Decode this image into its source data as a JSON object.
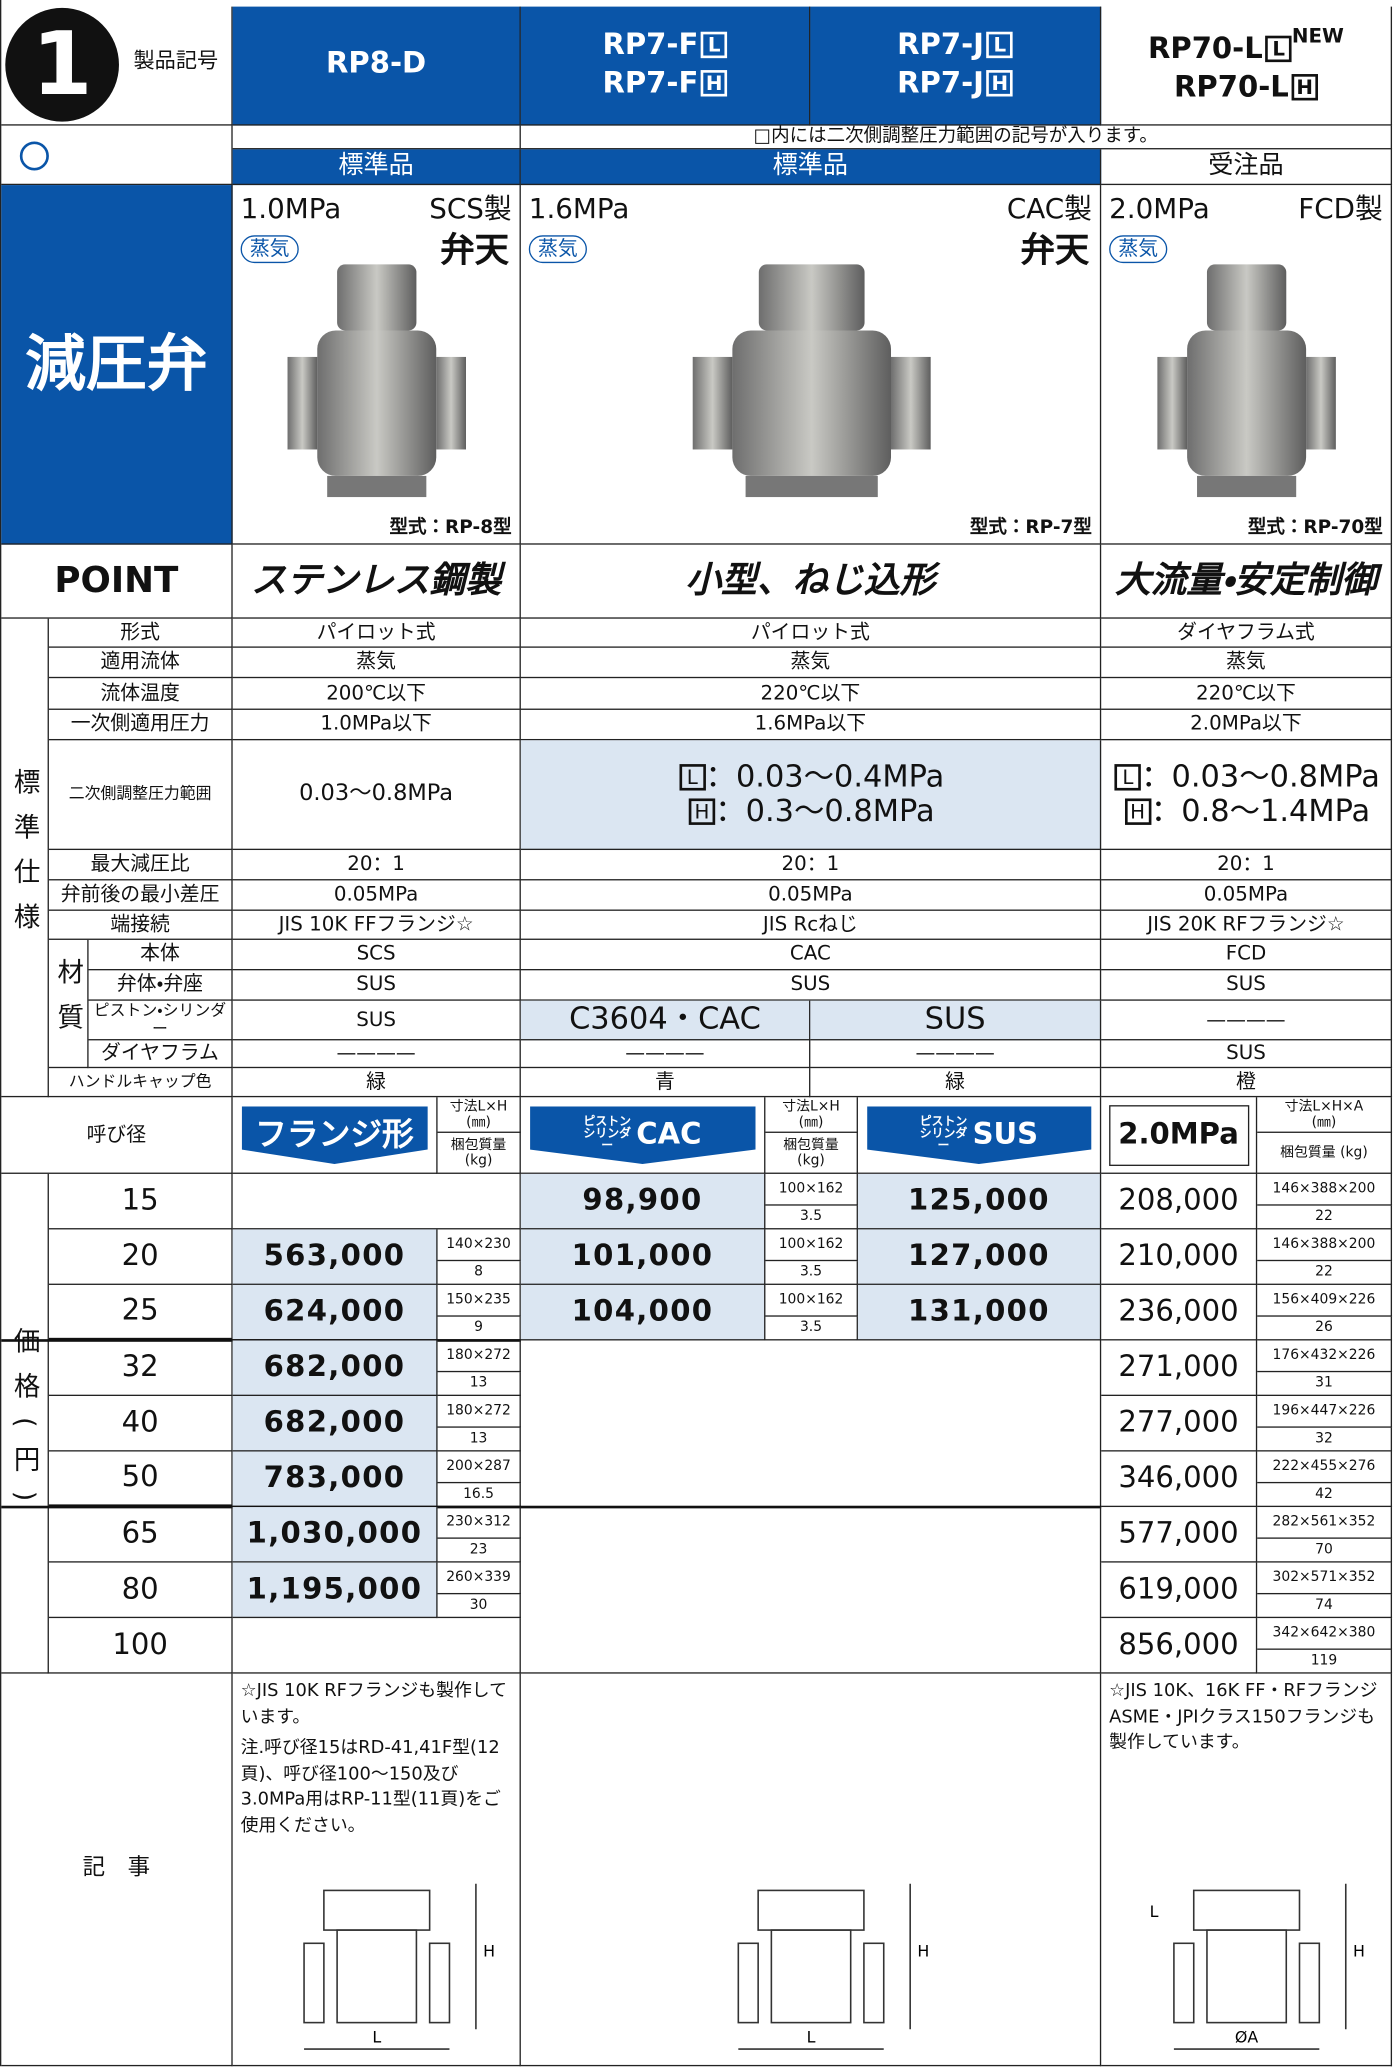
{
  "header": {
    "badge": "1",
    "label": "製品記号",
    "models": [
      {
        "lines": [
          {
            "text": "RP8-D"
          }
        ]
      },
      {
        "lines": [
          {
            "text": "RP7-F",
            "box": "L"
          },
          {
            "text": "RP7-F",
            "box": "H"
          }
        ]
      },
      {
        "lines": [
          {
            "text": "RP7-J",
            "box": "L"
          },
          {
            "text": "RP7-J",
            "box": "H"
          }
        ]
      },
      {
        "lines": [
          {
            "text": "RP70-L",
            "box": "L",
            "sup": "NEW"
          },
          {
            "text": "RP70-L",
            "box": "H"
          }
        ]
      }
    ]
  },
  "note_top": "□内には二次側調整圧力範囲の記号が入ります。",
  "grades": [
    "標準品",
    "標準品",
    "受注品"
  ],
  "category": "減圧弁",
  "products": [
    {
      "pressure": "1.0MPa",
      "material": "SCS製",
      "media": "蒸気",
      "brand": "弁天",
      "model_type": "型式：RP-8型"
    },
    {
      "pressure": "1.6MPa",
      "material": "CAC製",
      "media": "蒸気",
      "brand": "弁天",
      "model_type": "型式：RP-7型"
    },
    {
      "pressure": "2.0MPa",
      "material": "FCD製",
      "media": "蒸気",
      "model_type": "型式：RP-70型"
    }
  ],
  "point": {
    "label": "POINT",
    "items": [
      "ステンレス鋼製",
      "小型、ねじ込形",
      "大流量・安定制御"
    ]
  },
  "specs": {
    "group_label": "標準仕様",
    "material_label": "材質",
    "rows": [
      {
        "label": "形式",
        "cells": [
          "パイロット式",
          "パイロット式",
          "ダイヤフラム式"
        ]
      },
      {
        "label": "適用流体",
        "cells": [
          "蒸気",
          "蒸気",
          "蒸気"
        ]
      },
      {
        "label": "流体温度",
        "cells": [
          "200℃以下",
          "220℃以下",
          "220℃以下"
        ]
      },
      {
        "label": "一次側適用圧力",
        "cells": [
          "1.0MPa以下",
          "1.6MPa以下",
          "2.0MPa以下"
        ]
      },
      {
        "label": "二次側調整圧力範囲",
        "cells": [
          "0.03〜0.8MPa",
          [
            {
              "box": "L",
              "text": "：0.03〜0.4MPa"
            },
            {
              "box": "H",
              "text": "：0.3〜0.8MPa"
            }
          ],
          [
            {
              "box": "L",
              "text": "：0.03〜0.8MPa"
            },
            {
              "box": "H",
              "text": "：0.8〜1.4MPa"
            }
          ]
        ]
      },
      {
        "label": "最大減圧比",
        "cells": [
          "20：1",
          "20：1",
          "20：1"
        ]
      },
      {
        "label": "弁前後の最小差圧",
        "cells": [
          "0.05MPa",
          "0.05MPa",
          "0.05MPa"
        ]
      },
      {
        "label": "端接続",
        "cells": [
          "JIS 10K FFフランジ☆",
          "JIS Rcねじ",
          "JIS 20K RFフランジ☆"
        ]
      },
      {
        "label": "本体",
        "cells": [
          "SCS",
          "CAC",
          "FCD"
        ]
      },
      {
        "label": "弁体・弁座",
        "cells": [
          "SUS",
          "SUS",
          "SUS"
        ]
      },
      {
        "label": "ピストン・シリンダー",
        "cells": [
          "SUS",
          "C3604・CAC",
          "SUS",
          "————"
        ]
      },
      {
        "label": "ダイヤフラム",
        "cells": [
          "————",
          "————",
          "————",
          "SUS"
        ]
      },
      {
        "label": "ハンドルキャップ色",
        "cells": [
          "緑",
          "青",
          "緑",
          "橙"
        ]
      }
    ]
  },
  "price": {
    "group_label": "価格(円)",
    "size_label": "呼び径",
    "headers": [
      {
        "badge": "フランジ形",
        "dim": "寸法L×H",
        "dim_unit": "(㎜)",
        "weight": "梱包質量",
        "weight_unit": "(kg)"
      },
      {
        "badge_small": "ピストン シリンダー",
        "badge": "CAC",
        "dim": "寸法L×H",
        "dim_unit": "(㎜)",
        "weight": "梱包質量",
        "weight_unit": "(kg)"
      },
      {
        "badge_small": "ピストン シリンダー",
        "badge": "SUS"
      },
      {
        "badge": "2.0MPa",
        "dim": "寸法L×H×A",
        "dim_unit": "(㎜)",
        "weight": "梱包質量 (kg)"
      }
    ],
    "rows": [
      {
        "size": "15",
        "rp8": null,
        "rp7": {
          "cac": "98,900",
          "dim": "100×162",
          "kg": "3.5",
          "sus": "125,000"
        },
        "rp70": {
          "price": "208,000",
          "dim": "146×388×200",
          "kg": "22"
        }
      },
      {
        "size": "20",
        "rp8": {
          "price": "563,000",
          "dim": "140×230",
          "kg": "8"
        },
        "rp7": {
          "cac": "101,000",
          "dim": "100×162",
          "kg": "3.5",
          "sus": "127,000"
        },
        "rp70": {
          "price": "210,000",
          "dim": "146×388×200",
          "kg": "22"
        }
      },
      {
        "size": "25",
        "rp8": {
          "price": "624,000",
          "dim": "150×235",
          "kg": "9"
        },
        "rp7": {
          "cac": "104,000",
          "dim": "100×162",
          "kg": "3.5",
          "sus": "131,000"
        },
        "rp70": {
          "price": "236,000",
          "dim": "156×409×226",
          "kg": "26"
        }
      },
      {
        "size": "32",
        "rp8": {
          "price": "682,000",
          "dim": "180×272",
          "kg": "13"
        },
        "rp7": null,
        "rp70": {
          "price": "271,000",
          "dim": "176×432×226",
          "kg": "31"
        }
      },
      {
        "size": "40",
        "rp8": {
          "price": "682,000",
          "dim": "180×272",
          "kg": "13"
        },
        "rp7": null,
        "rp70": {
          "price": "277,000",
          "dim": "196×447×226",
          "kg": "32"
        }
      },
      {
        "size": "50",
        "rp8": {
          "price": "783,000",
          "dim": "200×287",
          "kg": "16.5"
        },
        "rp7": null,
        "rp70": {
          "price": "346,000",
          "dim": "222×455×276",
          "kg": "42"
        }
      },
      {
        "size": "65",
        "rp8": {
          "price": "1,030,000",
          "dim": "230×312",
          "kg": "23"
        },
        "rp7": null,
        "rp70": {
          "price": "577,000",
          "dim": "282×561×352",
          "kg": "70"
        }
      },
      {
        "size": "80",
        "rp8": {
          "price": "1,195,000",
          "dim": "260×339",
          "kg": "30"
        },
        "rp7": null,
        "rp70": {
          "price": "619,000",
          "dim": "302×571×352",
          "kg": "74"
        }
      },
      {
        "size": "100",
        "rp8": null,
        "rp7": null,
        "rp70": {
          "price": "856,000",
          "dim": "342×642×380",
          "kg": "119"
        }
      }
    ]
  },
  "notes": {
    "label": "記　事",
    "rp8": [
      "☆JIS 10K RFフランジも製作しています。",
      "注.呼び径15はRD-41,41F型(12頁)、呼び径100〜150及び3.0MPa用はRP-11型(11頁)をご使用ください。"
    ],
    "rp70": [
      "☆JIS 10K、16K FF・RFフランジ ASME・JPIクラス150フランジも製作しています。"
    ],
    "diagrams": [
      [
        "H",
        "L"
      ],
      [
        "H",
        "L"
      ],
      [
        "L",
        "H",
        "ØA"
      ]
    ]
  }
}
